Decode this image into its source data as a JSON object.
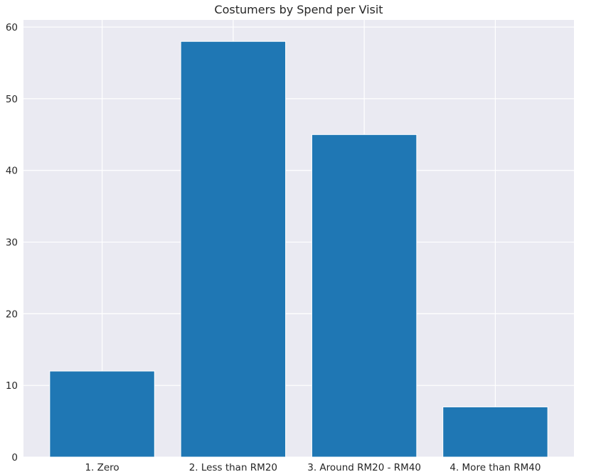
{
  "chart_data": {
    "type": "bar",
    "title": "Costumers by Spend per Visit",
    "xlabel": "",
    "ylabel": "",
    "categories": [
      "1. Zero",
      "2. Less than RM20",
      "3. Around RM20 - RM40",
      "4. More than RM40"
    ],
    "values": [
      12,
      58,
      45,
      7
    ],
    "ylim": [
      0,
      61
    ],
    "yticks": [
      0,
      10,
      20,
      30,
      40,
      50,
      60
    ],
    "grid": true,
    "legend": "none",
    "colors": {
      "bar": "#1f77b4",
      "plot_background": "#eaeaf2",
      "grid": "#ffffff",
      "text": "#262626"
    }
  }
}
